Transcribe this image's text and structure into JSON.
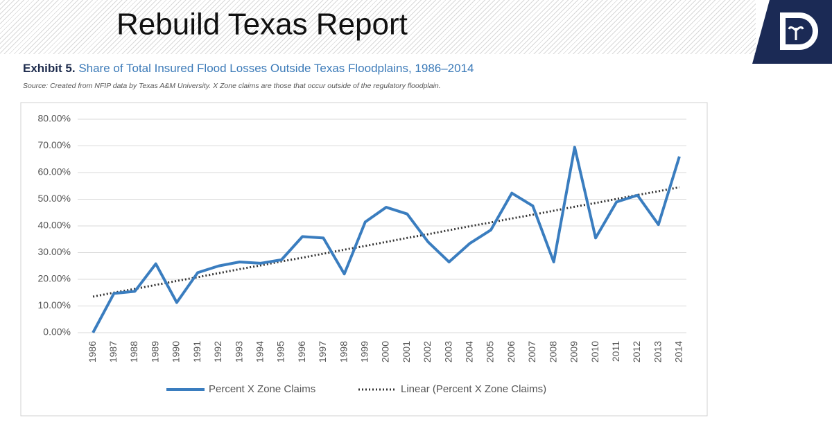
{
  "header": {
    "title": "Rebuild Texas Report"
  },
  "chart_data": {
    "type": "line",
    "exhibit": "Exhibit 5.",
    "title": "Share of Total Insured Flood Losses Outside Texas Floodplains, 1986–2014",
    "subtitle": "Source: Created from NFIP data by Texas A&M University. X Zone claims are those that occur outside of the regulatory floodplain.",
    "categories": [
      "1986",
      "1987",
      "1988",
      "1989",
      "1990",
      "1991",
      "1992",
      "1993",
      "1994",
      "1995",
      "1996",
      "1997",
      "1998",
      "1999",
      "2000",
      "2001",
      "2002",
      "2003",
      "2004",
      "2005",
      "2006",
      "2007",
      "2008",
      "2009",
      "2010",
      "2011",
      "2012",
      "2013",
      "2014"
    ],
    "series": [
      {
        "name": "Percent X Zone Claims",
        "color": "#3a7dbf",
        "dash": "solid",
        "values": [
          0,
          14.7,
          15.5,
          25.8,
          11.3,
          22.5,
          25,
          26.5,
          26,
          27.3,
          36,
          35.5,
          22,
          41.5,
          47,
          44.5,
          34,
          26.5,
          33.5,
          38.5,
          52.3,
          47.5,
          26.5,
          69.5,
          35.5,
          49,
          51.5,
          40.5,
          66
        ]
      },
      {
        "name": "Linear (Percent X Zone Claims)",
        "color": "#333333",
        "dash": "dotted",
        "values": [
          13.5,
          15,
          16.4,
          17.9,
          19.4,
          20.8,
          22.3,
          23.8,
          25.2,
          26.7,
          28.1,
          29.6,
          31.1,
          32.5,
          34,
          35.5,
          36.9,
          38.4,
          39.9,
          41.3,
          42.8,
          44.2,
          45.7,
          47.2,
          48.6,
          50.1,
          51.6,
          53,
          54.5
        ]
      }
    ],
    "ylim": [
      0,
      80
    ],
    "yticks": [
      {
        "value": 0,
        "label": "0.00%"
      },
      {
        "value": 10,
        "label": "10.00%"
      },
      {
        "value": 20,
        "label": "20.00%"
      },
      {
        "value": 30,
        "label": "30.00%"
      },
      {
        "value": 40,
        "label": "40.00%"
      },
      {
        "value": 50,
        "label": "50.00%"
      },
      {
        "value": 60,
        "label": "60.00%"
      },
      {
        "value": 70,
        "label": "70.00%"
      },
      {
        "value": 80,
        "label": "80.00%"
      }
    ],
    "grid": true,
    "legend": "bottom"
  }
}
